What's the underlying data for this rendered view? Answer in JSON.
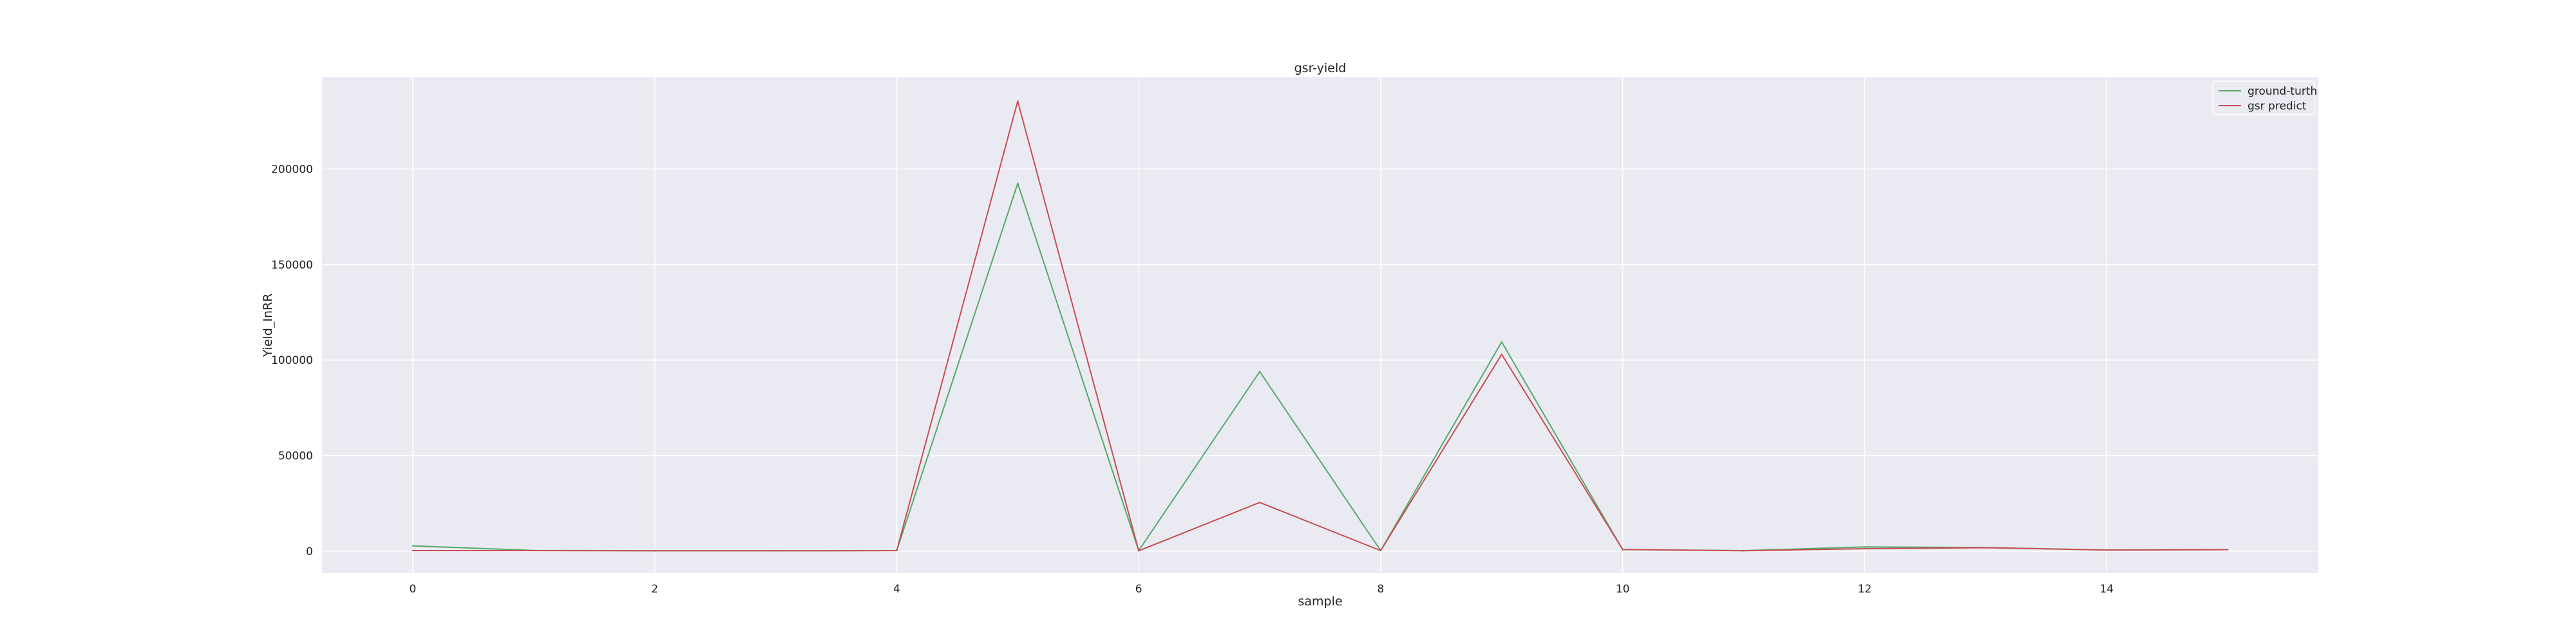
{
  "chart_data": {
    "type": "line",
    "title": "gsr-yield",
    "xlabel": "sample",
    "ylabel": "Yield_InRR",
    "x": [
      0,
      1,
      2,
      3,
      4,
      5,
      6,
      7,
      8,
      9,
      10,
      11,
      12,
      13,
      14,
      15
    ],
    "xlim": [
      -0.75,
      15.75
    ],
    "ylim": [
      -11500,
      248000
    ],
    "xticks": [
      0,
      2,
      4,
      6,
      8,
      10,
      12,
      14
    ],
    "xtick_labels": [
      "0",
      "2",
      "4",
      "6",
      "8",
      "10",
      "12",
      "14"
    ],
    "yticks": [
      0,
      50000,
      100000,
      150000,
      200000
    ],
    "ytick_labels": [
      "0",
      "50000",
      "100000",
      "150000",
      "200000"
    ],
    "grid": true,
    "legend_position": "top-right",
    "series": [
      {
        "name": "ground-turth",
        "color": "#55a868",
        "values": [
          2800,
          400,
          200,
          200,
          300,
          192500,
          300,
          94000,
          300,
          109500,
          800,
          300,
          2200,
          1900,
          600,
          800
        ]
      },
      {
        "name": "gsr predict",
        "color": "#c44e52",
        "values": [
          300,
          300,
          200,
          200,
          300,
          235500,
          200,
          25500,
          300,
          103000,
          900,
          200,
          1300,
          1800,
          600,
          800
        ]
      }
    ]
  }
}
